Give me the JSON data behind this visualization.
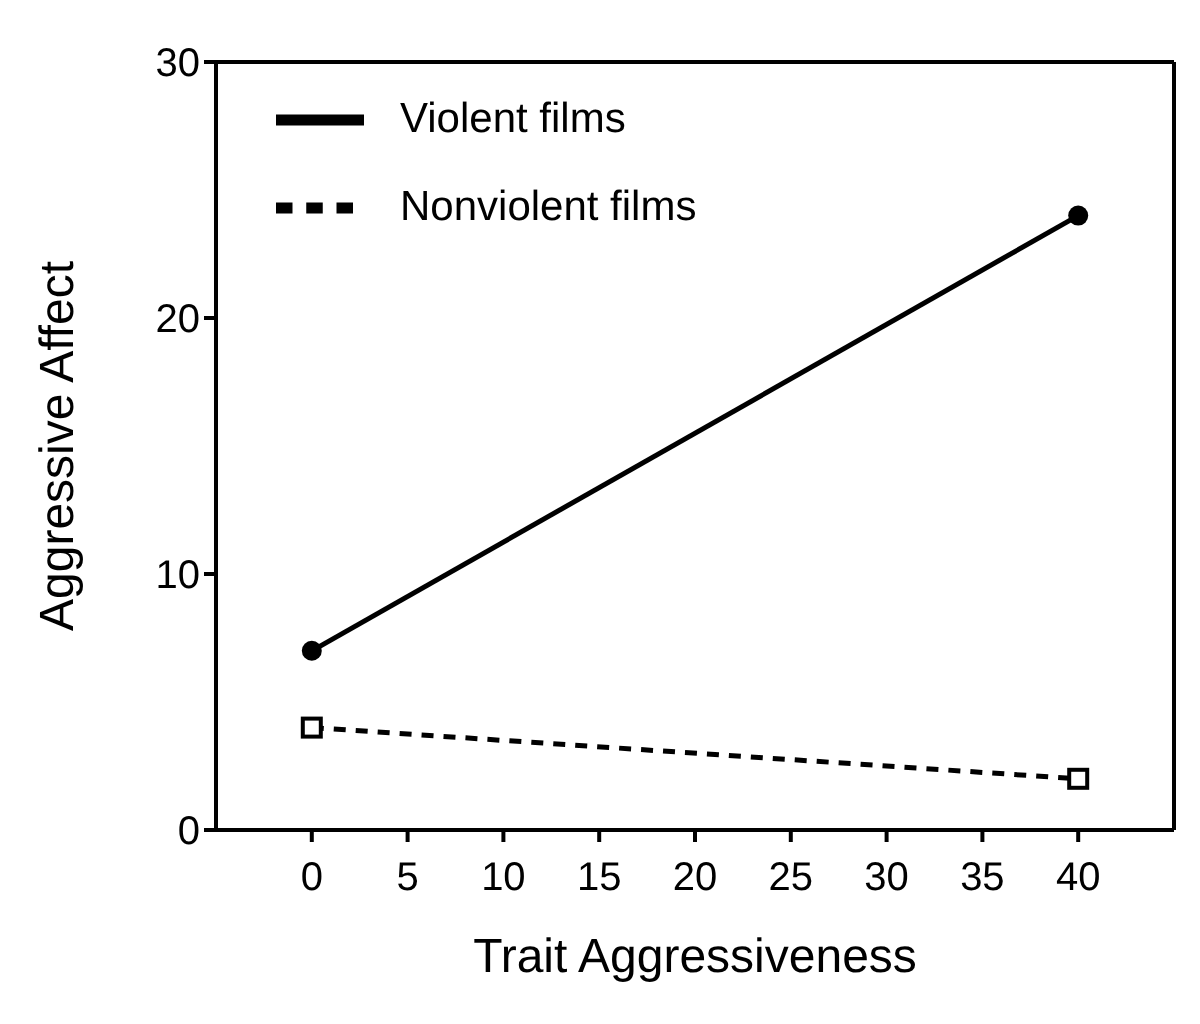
{
  "chart_data": {
    "type": "line",
    "xlabel": "Trait Aggressiveness",
    "ylabel": "Aggressive Affect",
    "x": [
      0,
      40
    ],
    "series": [
      {
        "name": "Violent films",
        "color": "#000000",
        "values": [
          7,
          24
        ],
        "marker": "circle",
        "line_style": "solid"
      },
      {
        "name": "Nonviolent films",
        "color": "#000000",
        "values": [
          4,
          2
        ],
        "marker": "square",
        "line_style": "dashed"
      }
    ],
    "xlim": [
      -5,
      45
    ],
    "xticks": [
      0,
      5,
      10,
      15,
      20,
      25,
      30,
      35,
      40
    ],
    "ylim": [
      0,
      30
    ],
    "yticks": [
      0,
      10,
      20,
      30
    ],
    "grid": false,
    "legend": "top left"
  }
}
